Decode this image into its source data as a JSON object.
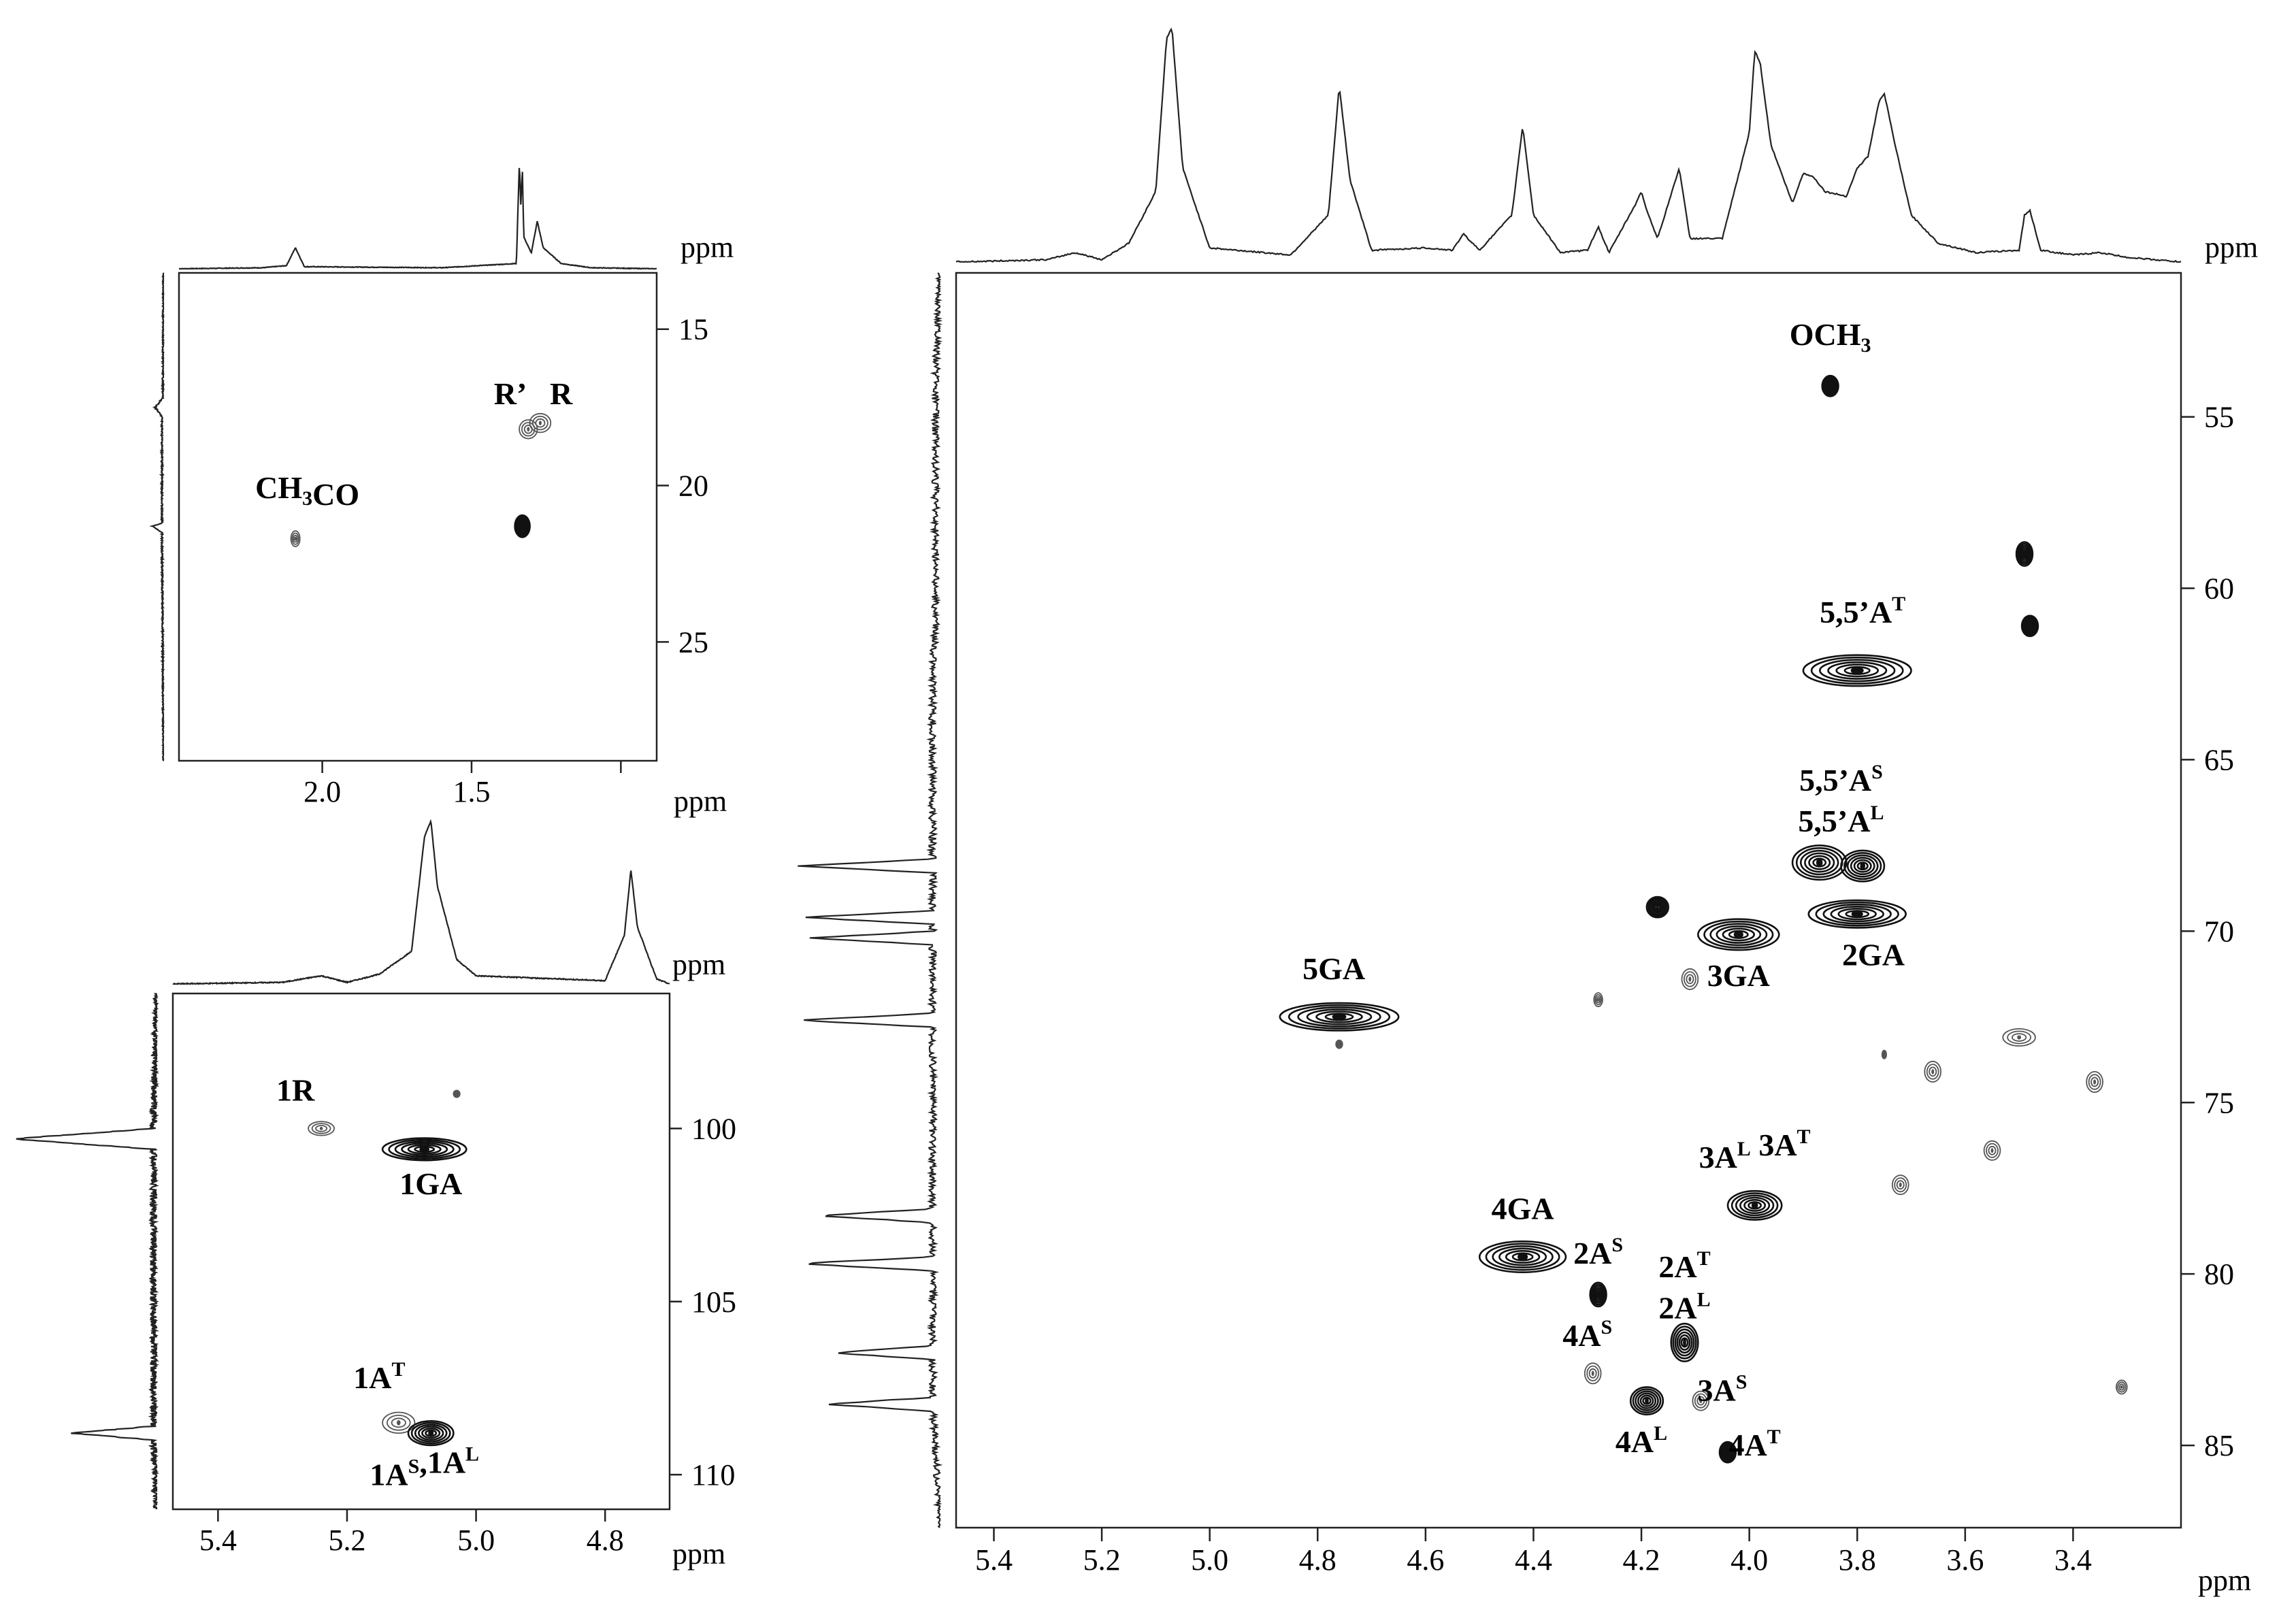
{
  "colors": {
    "contour": "#111111",
    "weak_contour": "#555555",
    "axis": "#222222",
    "background": "#ffffff"
  },
  "chart_data": [
    {
      "type": "heatmap",
      "title": "",
      "xlabel": "ppm",
      "ylabel": "ppm",
      "xlim": [
        2.48,
        0.88
      ],
      "ylim": [
        13.2,
        28.8
      ],
      "grid": false,
      "xticks": [
        {
          "v": 2.0,
          "label": "2.0"
        },
        {
          "v": 1.5,
          "label": "1.5"
        },
        {
          "v": 1.0,
          "label": ""
        }
      ],
      "yticks": [
        {
          "v": 15,
          "label": "15"
        },
        {
          "v": 20,
          "label": "20"
        },
        {
          "v": 25,
          "label": "25"
        }
      ],
      "peaks": [
        {
          "x": 1.33,
          "y": 21.3,
          "w": 0.025,
          "h": 0.35,
          "weight": "strong"
        },
        {
          "x": 1.27,
          "y": 18.0,
          "w": 0.035,
          "h": 0.3,
          "weight": "weak"
        },
        {
          "x": 1.31,
          "y": 18.2,
          "w": 0.03,
          "h": 0.3,
          "weight": "weak"
        },
        {
          "x": 2.09,
          "y": 21.7,
          "w": 0.015,
          "h": 0.25,
          "weight": "weak"
        }
      ],
      "labels": [
        {
          "name": "label-ch3co",
          "text": "CH",
          "sub": "3",
          "tail": "CO",
          "x": 2.05,
          "y": 20.4
        },
        {
          "name": "label-r-prime",
          "text": "R’",
          "x": 1.37,
          "y": 17.4
        },
        {
          "name": "label-r",
          "text": "R",
          "x": 1.2,
          "y": 17.4
        }
      ],
      "proj_top": [
        [
          2.48,
          0
        ],
        [
          2.2,
          0.01
        ],
        [
          2.12,
          0.03
        ],
        [
          2.09,
          0.2
        ],
        [
          2.06,
          0.02
        ],
        [
          1.6,
          0.01
        ],
        [
          1.35,
          0.05
        ],
        [
          1.34,
          1.0
        ],
        [
          1.335,
          0.6
        ],
        [
          1.33,
          0.95
        ],
        [
          1.325,
          0.3
        ],
        [
          1.3,
          0.15
        ],
        [
          1.28,
          0.45
        ],
        [
          1.26,
          0.2
        ],
        [
          1.2,
          0.05
        ],
        [
          1.1,
          0.01
        ],
        [
          0.88,
          0
        ]
      ],
      "proj_left": [
        [
          13.5,
          0
        ],
        [
          17.2,
          0.02
        ],
        [
          17.5,
          0.3
        ],
        [
          17.8,
          0.05
        ],
        [
          21.2,
          0.05
        ],
        [
          21.3,
          0.4
        ],
        [
          21.5,
          0.05
        ],
        [
          28.5,
          0
        ]
      ]
    },
    {
      "type": "heatmap",
      "title": "",
      "xlabel": "ppm",
      "ylabel": "ppm",
      "xlim": [
        5.47,
        4.7
      ],
      "ylim": [
        96.1,
        111.0
      ],
      "grid": false,
      "xticks": [
        {
          "v": 5.4,
          "label": "5.4"
        },
        {
          "v": 5.2,
          "label": "5.2"
        },
        {
          "v": 5.0,
          "label": "5.0"
        },
        {
          "v": 4.8,
          "label": "4.8"
        }
      ],
      "yticks": [
        {
          "v": 100,
          "label": "100"
        },
        {
          "v": 105,
          "label": "105"
        },
        {
          "v": 110,
          "label": "110"
        }
      ],
      "peaks": [
        {
          "x": 5.08,
          "y": 100.6,
          "w": 0.065,
          "h": 0.32,
          "weight": "strong"
        },
        {
          "x": 5.24,
          "y": 100.0,
          "w": 0.02,
          "h": 0.2,
          "weight": "weak"
        },
        {
          "x": 5.12,
          "y": 108.5,
          "w": 0.025,
          "h": 0.3,
          "weight": "weak"
        },
        {
          "x": 5.07,
          "y": 108.8,
          "w": 0.035,
          "h": 0.35,
          "weight": "strong"
        },
        {
          "x": 5.03,
          "y": 99.0,
          "w": 0.005,
          "h": 0.1,
          "weight": "weak"
        }
      ],
      "labels": [
        {
          "name": "label-1r",
          "text": "1R",
          "x": 5.28,
          "y": 99.2
        },
        {
          "name": "label-1ga",
          "text": "1GA",
          "x": 5.07,
          "y": 101.9
        },
        {
          "name": "label-1at",
          "text": "1A",
          "sup": "T",
          "x": 5.15,
          "y": 107.5
        },
        {
          "name": "label-1as-1al",
          "text": "1A",
          "sup": "S",
          "tail": ",1A",
          "sup2": "L",
          "x": 5.08,
          "y": 110.3
        }
      ],
      "proj_top": [
        [
          5.47,
          0
        ],
        [
          5.3,
          0.01
        ],
        [
          5.24,
          0.05
        ],
        [
          5.2,
          0.01
        ],
        [
          5.15,
          0.06
        ],
        [
          5.1,
          0.2
        ],
        [
          5.08,
          0.9
        ],
        [
          5.07,
          1.0
        ],
        [
          5.06,
          0.6
        ],
        [
          5.03,
          0.15
        ],
        [
          5.0,
          0.05
        ],
        [
          4.8,
          0.02
        ],
        [
          4.77,
          0.3
        ],
        [
          4.76,
          0.7
        ],
        [
          4.75,
          0.35
        ],
        [
          4.72,
          0.03
        ],
        [
          4.7,
          0
        ]
      ],
      "proj_left": [
        [
          96.5,
          0
        ],
        [
          100.0,
          0.02
        ],
        [
          100.3,
          1.0
        ],
        [
          100.6,
          0.02
        ],
        [
          108.6,
          0.02
        ],
        [
          108.8,
          0.6
        ],
        [
          109.0,
          0.02
        ],
        [
          110.8,
          0
        ]
      ]
    },
    {
      "type": "heatmap",
      "title": "",
      "xlabel": "ppm",
      "ylabel": "ppm",
      "xlim": [
        5.47,
        3.2
      ],
      "ylim": [
        50.8,
        87.4
      ],
      "grid": false,
      "xticks": [
        {
          "v": 5.4,
          "label": "5.4"
        },
        {
          "v": 5.2,
          "label": "5.2"
        },
        {
          "v": 5.0,
          "label": "5.0"
        },
        {
          "v": 4.8,
          "label": "4.8"
        },
        {
          "v": 4.6,
          "label": "4.6"
        },
        {
          "v": 4.4,
          "label": "4.4"
        },
        {
          "v": 4.2,
          "label": "4.2"
        },
        {
          "v": 4.0,
          "label": "4.0"
        },
        {
          "v": 3.8,
          "label": "3.8"
        },
        {
          "v": 3.6,
          "label": "3.6"
        },
        {
          "v": 3.4,
          "label": "3.4"
        }
      ],
      "yticks": [
        {
          "v": 55,
          "label": "55"
        },
        {
          "v": 60,
          "label": "60"
        },
        {
          "v": 65,
          "label": "65"
        },
        {
          "v": 70,
          "label": "70"
        },
        {
          "v": 75,
          "label": "75"
        },
        {
          "v": 80,
          "label": "80"
        },
        {
          "v": 85,
          "label": "85"
        }
      ],
      "peaks": [
        {
          "x": 3.85,
          "y": 54.1,
          "w": 0.015,
          "h": 0.3,
          "weight": "strong"
        },
        {
          "x": 3.49,
          "y": 59.0,
          "w": 0.015,
          "h": 0.35,
          "weight": "strong"
        },
        {
          "x": 3.48,
          "y": 61.1,
          "w": 0.015,
          "h": 0.3,
          "weight": "strong"
        },
        {
          "x": 3.8,
          "y": 62.4,
          "w": 0.1,
          "h": 0.45,
          "weight": "strong"
        },
        {
          "x": 3.87,
          "y": 68.0,
          "w": 0.05,
          "h": 0.5,
          "weight": "strong"
        },
        {
          "x": 3.79,
          "y": 68.1,
          "w": 0.04,
          "h": 0.45,
          "weight": "strong"
        },
        {
          "x": 3.8,
          "y": 69.5,
          "w": 0.09,
          "h": 0.4,
          "weight": "strong"
        },
        {
          "x": 4.02,
          "y": 70.1,
          "w": 0.075,
          "h": 0.45,
          "weight": "strong"
        },
        {
          "x": 4.17,
          "y": 69.3,
          "w": 0.02,
          "h": 0.3,
          "weight": "strong"
        },
        {
          "x": 4.11,
          "y": 71.4,
          "w": 0.015,
          "h": 0.3,
          "weight": "weak"
        },
        {
          "x": 4.28,
          "y": 72.0,
          "w": 0.008,
          "h": 0.2,
          "weight": "weak"
        },
        {
          "x": 4.76,
          "y": 72.5,
          "w": 0.11,
          "h": 0.4,
          "weight": "strong"
        },
        {
          "x": 3.5,
          "y": 73.1,
          "w": 0.03,
          "h": 0.25,
          "weight": "weak"
        },
        {
          "x": 3.66,
          "y": 74.1,
          "w": 0.015,
          "h": 0.3,
          "weight": "weak"
        },
        {
          "x": 3.36,
          "y": 74.4,
          "w": 0.015,
          "h": 0.3,
          "weight": "weak"
        },
        {
          "x": 3.75,
          "y": 73.6,
          "w": 0.004,
          "h": 0.12,
          "weight": "weak"
        },
        {
          "x": 3.55,
          "y": 76.4,
          "w": 0.015,
          "h": 0.28,
          "weight": "weak"
        },
        {
          "x": 3.72,
          "y": 77.4,
          "w": 0.015,
          "h": 0.28,
          "weight": "weak"
        },
        {
          "x": 3.99,
          "y": 78.0,
          "w": 0.05,
          "h": 0.42,
          "weight": "strong"
        },
        {
          "x": 4.42,
          "y": 79.5,
          "w": 0.08,
          "h": 0.45,
          "weight": "strong"
        },
        {
          "x": 4.28,
          "y": 80.6,
          "w": 0.015,
          "h": 0.35,
          "weight": "strong"
        },
        {
          "x": 4.12,
          "y": 82.0,
          "w": 0.025,
          "h": 0.55,
          "weight": "strong"
        },
        {
          "x": 4.29,
          "y": 82.9,
          "w": 0.015,
          "h": 0.3,
          "weight": "weak"
        },
        {
          "x": 4.19,
          "y": 83.7,
          "w": 0.03,
          "h": 0.4,
          "weight": "strong"
        },
        {
          "x": 4.09,
          "y": 83.7,
          "w": 0.015,
          "h": 0.28,
          "weight": "weak"
        },
        {
          "x": 4.04,
          "y": 85.2,
          "w": 0.015,
          "h": 0.3,
          "weight": "strong"
        },
        {
          "x": 3.31,
          "y": 83.3,
          "w": 0.01,
          "h": 0.2,
          "weight": "weak"
        },
        {
          "x": 4.76,
          "y": 73.3,
          "w": 0.006,
          "h": 0.12,
          "weight": "weak"
        }
      ],
      "labels": [
        {
          "name": "label-och3",
          "text": "OCH",
          "sub": "3",
          "x": 3.85,
          "y": 52.9
        },
        {
          "name": "label-55at",
          "text": "5,5’A",
          "sup": "T",
          "x": 3.79,
          "y": 61.0
        },
        {
          "name": "label-55as",
          "text": "5,5’A",
          "sup": "S",
          "x": 3.83,
          "y": 65.9
        },
        {
          "name": "label-55al",
          "text": "5,5’A",
          "sup": "L",
          "x": 3.83,
          "y": 67.1
        },
        {
          "name": "label-2ga",
          "text": "2GA",
          "x": 3.77,
          "y": 71.0
        },
        {
          "name": "label-3ga",
          "text": "3GA",
          "x": 4.02,
          "y": 71.6
        },
        {
          "name": "label-5ga",
          "text": "5GA",
          "x": 4.77,
          "y": 71.4
        },
        {
          "name": "label-3al-3at",
          "text": "3A",
          "sup": "L",
          "tail": " 3A",
          "sup2": "T",
          "x": 3.99,
          "y": 76.9
        },
        {
          "name": "label-4ga",
          "text": "4GA",
          "x": 4.42,
          "y": 78.4
        },
        {
          "name": "label-2as",
          "text": "2A",
          "sup": "S",
          "x": 4.28,
          "y": 79.7
        },
        {
          "name": "label-2at",
          "text": "2A",
          "sup": "T",
          "x": 4.12,
          "y": 80.1
        },
        {
          "name": "label-2al",
          "text": "2A",
          "sup": "L",
          "x": 4.12,
          "y": 81.3
        },
        {
          "name": "label-4as",
          "text": "4A",
          "sup": "S",
          "x": 4.3,
          "y": 82.1
        },
        {
          "name": "label-3as",
          "text": "3A",
          "sup": "S",
          "x": 4.05,
          "y": 83.7
        },
        {
          "name": "label-4al",
          "text": "4A",
          "sup": "L",
          "x": 4.2,
          "y": 85.2
        },
        {
          "name": "label-4at",
          "text": "4A",
          "sup": "T",
          "x": 3.99,
          "y": 85.3
        }
      ],
      "proj_top": [
        [
          5.47,
          0
        ],
        [
          5.3,
          0.01
        ],
        [
          5.25,
          0.04
        ],
        [
          5.2,
          0.01
        ],
        [
          5.15,
          0.08
        ],
        [
          5.1,
          0.3
        ],
        [
          5.08,
          0.95
        ],
        [
          5.07,
          1.0
        ],
        [
          5.05,
          0.4
        ],
        [
          5.0,
          0.06
        ],
        [
          4.85,
          0.03
        ],
        [
          4.78,
          0.2
        ],
        [
          4.76,
          0.75
        ],
        [
          4.74,
          0.35
        ],
        [
          4.7,
          0.05
        ],
        [
          4.6,
          0.06
        ],
        [
          4.55,
          0.05
        ],
        [
          4.53,
          0.12
        ],
        [
          4.5,
          0.05
        ],
        [
          4.44,
          0.2
        ],
        [
          4.42,
          0.58
        ],
        [
          4.4,
          0.2
        ],
        [
          4.35,
          0.04
        ],
        [
          4.3,
          0.05
        ],
        [
          4.28,
          0.15
        ],
        [
          4.26,
          0.04
        ],
        [
          4.21,
          0.25
        ],
        [
          4.2,
          0.3
        ],
        [
          4.19,
          0.22
        ],
        [
          4.17,
          0.1
        ],
        [
          4.13,
          0.4
        ],
        [
          4.11,
          0.1
        ],
        [
          4.05,
          0.1
        ],
        [
          4.0,
          0.55
        ],
        [
          3.99,
          0.9
        ],
        [
          3.98,
          0.85
        ],
        [
          3.96,
          0.5
        ],
        [
          3.92,
          0.25
        ],
        [
          3.9,
          0.38
        ],
        [
          3.88,
          0.36
        ],
        [
          3.86,
          0.3
        ],
        [
          3.82,
          0.28
        ],
        [
          3.8,
          0.4
        ],
        [
          3.78,
          0.45
        ],
        [
          3.76,
          0.68
        ],
        [
          3.75,
          0.72
        ],
        [
          3.73,
          0.5
        ],
        [
          3.7,
          0.2
        ],
        [
          3.65,
          0.08
        ],
        [
          3.58,
          0.04
        ],
        [
          3.5,
          0.05
        ],
        [
          3.49,
          0.2
        ],
        [
          3.48,
          0.22
        ],
        [
          3.46,
          0.05
        ],
        [
          3.4,
          0.03
        ],
        [
          3.35,
          0.04
        ],
        [
          3.3,
          0.02
        ],
        [
          3.2,
          0
        ]
      ],
      "proj_left": [
        [
          51,
          0
        ],
        [
          54.1,
          0.03
        ],
        [
          61.0,
          0.03
        ],
        [
          62.4,
          0.05
        ],
        [
          67.9,
          0.05
        ],
        [
          68.1,
          1.0
        ],
        [
          68.3,
          0.05
        ],
        [
          69.4,
          0.05
        ],
        [
          69.6,
          0.95
        ],
        [
          69.8,
          0.05
        ],
        [
          70.0,
          0.05
        ],
        [
          70.2,
          0.9
        ],
        [
          70.4,
          0.05
        ],
        [
          72.4,
          0.05
        ],
        [
          72.6,
          1.0
        ],
        [
          72.8,
          0.05
        ],
        [
          78.1,
          0.05
        ],
        [
          78.3,
          0.85
        ],
        [
          78.5,
          0.05
        ],
        [
          79.5,
          0.05
        ],
        [
          79.7,
          1.0
        ],
        [
          79.9,
          0.05
        ],
        [
          82.1,
          0.05
        ],
        [
          82.3,
          0.75
        ],
        [
          82.5,
          0.05
        ],
        [
          83.6,
          0.05
        ],
        [
          83.8,
          0.8
        ],
        [
          84.0,
          0.05
        ],
        [
          87,
          0
        ]
      ]
    }
  ]
}
